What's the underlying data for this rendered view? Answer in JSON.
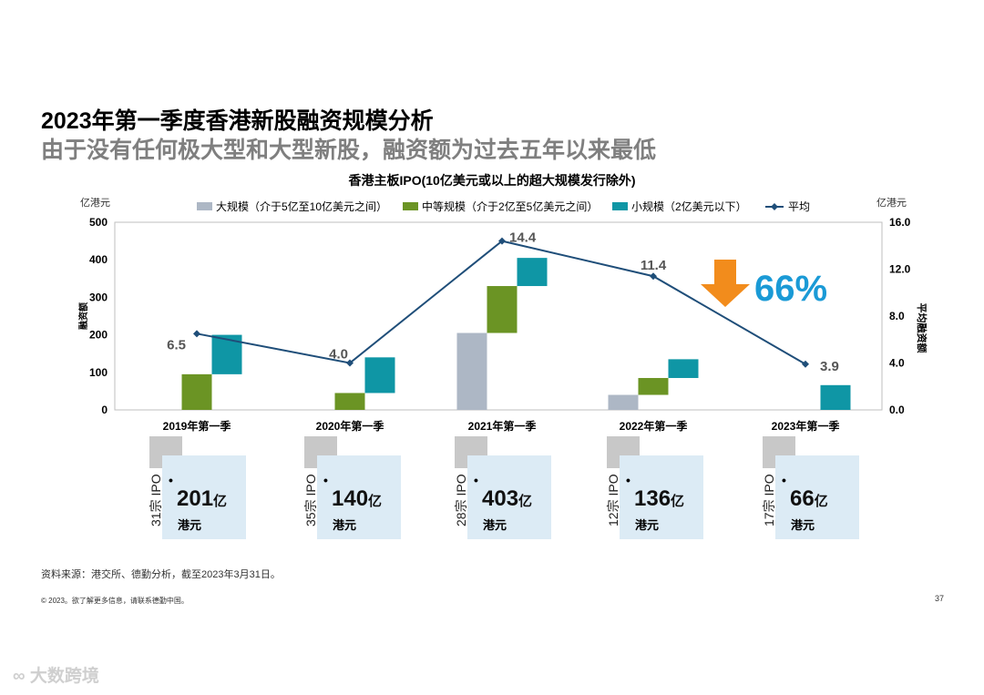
{
  "title": "2023年第一季度香港新股融资规模分析",
  "subtitle": "由于没有任何极大型和大型新股，融资额为过去五年以来最低",
  "chart_data": {
    "type": "bar",
    "title": "香港主板IPO(10亿美元或以上的超大规模发行除外)",
    "categories": [
      "2019年第一季",
      "2020年第一季",
      "2021年第一季",
      "2022年第一季",
      "2023年第一季"
    ],
    "series": [
      {
        "name": "大规模（介于5亿至10亿美元之间）",
        "color": "#adb7c5",
        "values": [
          0,
          0,
          205,
          40,
          0
        ]
      },
      {
        "name": "中等规模（介于2亿至5亿美元之间）",
        "color": "#6b9424",
        "values": [
          95,
          45,
          125,
          45,
          0
        ]
      },
      {
        "name": "小规模（2亿美元以下）",
        "color": "#0f96a5",
        "values": [
          105,
          95,
          75,
          50,
          66
        ]
      }
    ],
    "line": {
      "name": "平均",
      "color": "#1f4e79",
      "values": [
        6.5,
        4.0,
        14.4,
        11.4,
        3.9
      ],
      "labels": [
        "6.5",
        "4.0",
        "14.4",
        "11.4",
        "3.9"
      ]
    },
    "ylabel": "融资额",
    "yunit": "亿港元",
    "ylim": [
      0,
      500
    ],
    "yticks": [
      "0",
      "100",
      "200",
      "300",
      "400",
      "500"
    ],
    "y2label": "平均融资额",
    "y2unit": "亿港元",
    "y2lim": [
      0,
      16
    ],
    "y2ticks": [
      "0.0",
      "4.0",
      "8.0",
      "12.0",
      "16.0"
    ],
    "annotation": {
      "text": "66%",
      "arrow": "down",
      "arrow_color": "#f28c1c",
      "text_color": "#1a9ad6"
    }
  },
  "cards": [
    {
      "deals": "31宗 IPO",
      "amount": "201",
      "unit": "亿",
      "currency": "港元"
    },
    {
      "deals": "35宗 IPO",
      "amount": "140",
      "unit": "亿",
      "currency": "港元"
    },
    {
      "deals": "28宗 IPO",
      "amount": "403",
      "unit": "亿",
      "currency": "港元"
    },
    {
      "deals": "12宗 IPO",
      "amount": "136",
      "unit": "亿",
      "currency": "港元"
    },
    {
      "deals": "17宗 IPO",
      "amount": "66",
      "unit": "亿",
      "currency": "港元"
    }
  ],
  "source": "资料来源：港交所、德勤分析，截至2023年3月31日。",
  "copyright": "© 2023。欲了解更多信息，请联系德勤中国。",
  "page_number": "37",
  "watermark": "大数跨境"
}
